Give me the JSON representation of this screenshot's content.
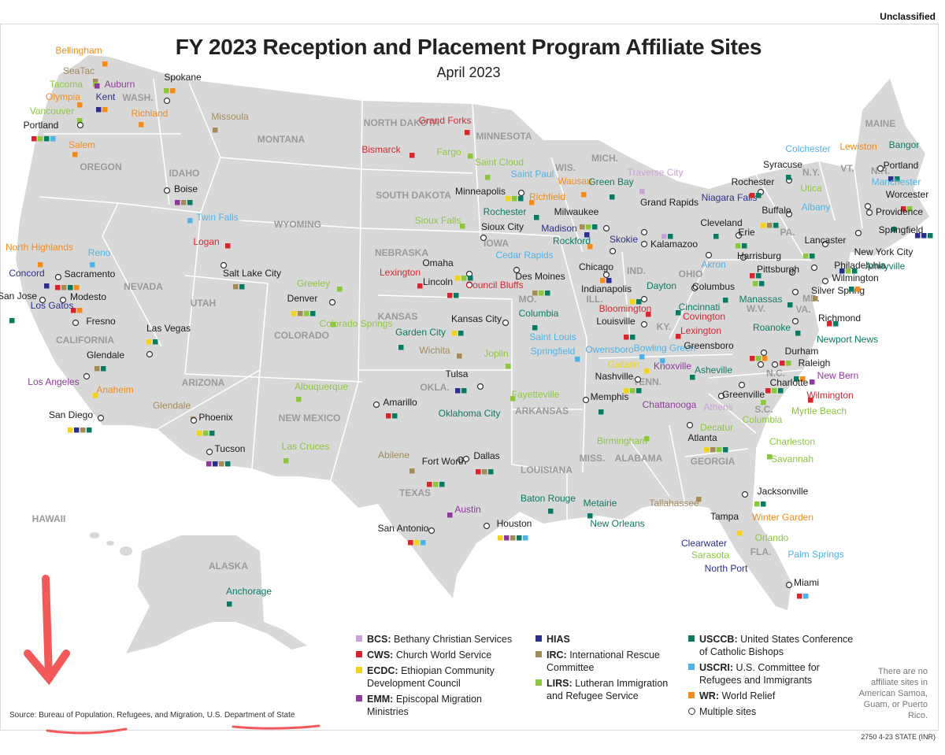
{
  "header": {
    "classification": "Unclassified",
    "title": "FY 2023 Reception and Placement Program Affiliate Sites",
    "subtitle": "April 2023"
  },
  "colors": {
    "BCS": "#c9a3d8",
    "CWS": "#d7262e",
    "ECDC": "#f2d21b",
    "EMM": "#8e3a9c",
    "HIAS": "#2b2e8c",
    "IRC": "#a38b5a",
    "LIRS": "#8cc63f",
    "USCCB": "#0b7a63",
    "USCRI": "#4fb3e6",
    "WR": "#f28c1d",
    "land": "#d8d8d8",
    "border": "#ffffff"
  },
  "legend": [
    {
      "code": "BCS",
      "abbr": "BCS:",
      "text": "Bethany Christian Services"
    },
    {
      "code": "CWS",
      "abbr": "CWS:",
      "text": "Church World Service"
    },
    {
      "code": "ECDC",
      "abbr": "ECDC:",
      "text": "Ethiopian Community Development Council"
    },
    {
      "code": "EMM",
      "abbr": "EMM:",
      "text": "Episcopal Migration Ministries"
    },
    {
      "code": "HIAS",
      "abbr": "HIAS",
      "text": ""
    },
    {
      "code": "IRC",
      "abbr": "IRC:",
      "text": "International Rescue Committee"
    },
    {
      "code": "LIRS",
      "abbr": "LIRS:",
      "text": "Lutheran Immigration and Refugee Service"
    },
    {
      "code": "USCCB",
      "abbr": "USCCB:",
      "text": "United States Conference of Catholic Bishops"
    },
    {
      "code": "USCRI",
      "abbr": "USCRI:",
      "text": "U.S. Committee for Refugees and Immigrants"
    },
    {
      "code": "WR",
      "abbr": "WR:",
      "text": "World Relief"
    },
    {
      "code": "MULTI",
      "abbr": "",
      "text": "Multiple sites"
    }
  ],
  "note": "There are no affiliate sites in American Samoa, Guam, or Puerto Rico.",
  "source": "Source: Bureau of Population, Refugees, and Migration, U.S. Department of State",
  "code_mark": "2750 4-23 STATE (INR)",
  "states": [
    "WASH.",
    "OREGON",
    "CALIFORNIA",
    "NEVADA",
    "IDAHO",
    "MONTANA",
    "WYOMING",
    "UTAH",
    "ARIZONA",
    "COLORADO",
    "NEW MEXICO",
    "NORTH DAKOTA",
    "SOUTH DAKOTA",
    "NEBRASKA",
    "KANSAS",
    "OKLA.",
    "TEXAS",
    "MINNESOTA",
    "IOWA",
    "MO.",
    "ARKANSAS",
    "LOUISIANA",
    "WIS.",
    "ILL.",
    "MICH.",
    "IND.",
    "OHIO",
    "KY.",
    "TENN.",
    "MISS.",
    "ALABAMA",
    "GEORGIA",
    "FLA.",
    "S.C.",
    "N.C.",
    "VA.",
    "W.V.",
    "PA.",
    "N.Y.",
    "VT.",
    "N.H.",
    "MAINE",
    "MD.",
    "HAWAII",
    "ALASKA"
  ],
  "cities": [
    {
      "name": "Bellingham",
      "color": "WR",
      "sites": [
        "WR"
      ]
    },
    {
      "name": "SeaTac",
      "color": "IRC",
      "sites": [
        "IRC"
      ]
    },
    {
      "name": "Tacoma",
      "color": "LIRS",
      "sites": [
        "LIRS"
      ]
    },
    {
      "name": "Auburn",
      "color": "EMM",
      "sites": [
        "EMM"
      ]
    },
    {
      "name": "Olympia",
      "color": "WR",
      "sites": [
        "WR"
      ]
    },
    {
      "name": "Kent",
      "color": "HIAS",
      "sites": [
        "HIAS",
        "WR"
      ]
    },
    {
      "name": "Spokane",
      "color": "black",
      "sites": [
        "LIRS",
        "WR"
      ]
    },
    {
      "name": "Vancouver",
      "color": "LIRS",
      "sites": [
        "LIRS"
      ]
    },
    {
      "name": "Richland",
      "color": "WR",
      "sites": [
        "WR"
      ]
    },
    {
      "name": "Portland",
      "color": "black",
      "sites": [
        "CWS",
        "LIRS",
        "USCCB",
        "USCRI"
      ]
    },
    {
      "name": "Salem",
      "color": "WR",
      "sites": [
        "WR"
      ]
    },
    {
      "name": "Missoula",
      "color": "IRC",
      "sites": [
        "IRC"
      ]
    },
    {
      "name": "Boise",
      "color": "black",
      "sites": [
        "EMM",
        "IRC",
        "USCCB"
      ]
    },
    {
      "name": "Twin Falls",
      "color": "USCRI",
      "sites": [
        "USCRI"
      ]
    },
    {
      "name": "Logan",
      "color": "CWS",
      "sites": [
        "CWS"
      ]
    },
    {
      "name": "Salt Lake City",
      "color": "black",
      "sites": [
        "IRC",
        "USCCB"
      ]
    },
    {
      "name": "Reno",
      "color": "USCRI",
      "sites": [
        "USCRI"
      ]
    },
    {
      "name": "North Highlands",
      "color": "WR",
      "sites": [
        "WR"
      ]
    },
    {
      "name": "Concord",
      "color": "HIAS",
      "sites": [
        "HIAS"
      ]
    },
    {
      "name": "Sacramento",
      "color": "black",
      "sites": [
        "CWS",
        "IRC",
        "USCCB",
        "WR"
      ]
    },
    {
      "name": "San Jose",
      "color": "black",
      "sites": [
        "USCCB"
      ]
    },
    {
      "name": "Modesto",
      "color": "black",
      "sites": [
        "CWS",
        "WR"
      ]
    },
    {
      "name": "Los Gatos",
      "color": "HIAS",
      "sites": [
        "HIAS"
      ]
    },
    {
      "name": "Fresno",
      "color": "black",
      "sites": []
    },
    {
      "name": "Las Vegas",
      "color": "black",
      "sites": [
        "ECDC",
        "USCCB"
      ]
    },
    {
      "name": "Glendale",
      "color": "black",
      "sites": [
        "IRC",
        "USCCB"
      ]
    },
    {
      "name": "Los Angeles",
      "color": "EMM",
      "sites": []
    },
    {
      "name": "Anaheim",
      "color": "WR",
      "sites": [
        "ECDC"
      ]
    },
    {
      "name": "San Diego",
      "color": "black",
      "sites": [
        "ECDC",
        "HIAS",
        "IRC",
        "USCCB"
      ]
    },
    {
      "name": "Glendale",
      "color": "IRC",
      "sites": [
        "IRC"
      ]
    },
    {
      "name": "Phoenix",
      "color": "black",
      "sites": [
        "ECDC",
        "LIRS",
        "USCCB"
      ]
    },
    {
      "name": "Tucson",
      "color": "black",
      "sites": [
        "EMM",
        "HIAS",
        "IRC",
        "USCCB"
      ]
    },
    {
      "name": "Greeley",
      "color": "LIRS",
      "sites": [
        "LIRS"
      ]
    },
    {
      "name": "Denver",
      "color": "black",
      "sites": [
        "ECDC",
        "IRC",
        "LIRS",
        "USCCB"
      ]
    },
    {
      "name": "Colorado Springs",
      "color": "LIRS",
      "sites": [
        "LIRS"
      ]
    },
    {
      "name": "Albuquerque",
      "color": "LIRS",
      "sites": [
        "LIRS"
      ]
    },
    {
      "name": "Las Cruces",
      "color": "LIRS",
      "sites": [
        "LIRS"
      ]
    },
    {
      "name": "Grand Forks",
      "color": "CWS",
      "sites": [
        "CWS"
      ]
    },
    {
      "name": "Bismarck",
      "color": "CWS",
      "sites": [
        "CWS"
      ]
    },
    {
      "name": "Fargo",
      "color": "LIRS",
      "sites": [
        "LIRS"
      ]
    },
    {
      "name": "Sioux Falls",
      "color": "LIRS",
      "sites": [
        "LIRS"
      ]
    },
    {
      "name": "Lexington",
      "color": "CWS",
      "sites": [
        "CWS"
      ]
    },
    {
      "name": "Omaha",
      "color": "black",
      "sites": [
        "ECDC",
        "LIRS",
        "USCCB"
      ]
    },
    {
      "name": "Lincoln",
      "color": "black",
      "sites": [
        "CWS",
        "USCCB"
      ]
    },
    {
      "name": "Council Bluffs",
      "color": "CWS",
      "sites": [
        "CWS"
      ]
    },
    {
      "name": "Garden City",
      "color": "USCCB",
      "sites": [
        "USCCB"
      ]
    },
    {
      "name": "Wichita",
      "color": "IRC",
      "sites": [
        "IRC"
      ]
    },
    {
      "name": "Kansas City",
      "color": "black",
      "sites": [
        "ECDC",
        "USCCB"
      ]
    },
    {
      "name": "Tulsa",
      "color": "black",
      "sites": [
        "HIAS",
        "USCCB"
      ]
    },
    {
      "name": "Oklahoma City",
      "color": "USCCB",
      "sites": [
        "USCCB"
      ]
    },
    {
      "name": "Amarillo",
      "color": "black",
      "sites": [
        "CWS",
        "USCCB"
      ]
    },
    {
      "name": "Abilene",
      "color": "IRC",
      "sites": [
        "IRC"
      ]
    },
    {
      "name": "Fort Worth",
      "color": "black",
      "sites": [
        "CWS",
        "LIRS",
        "USCCB"
      ]
    },
    {
      "name": "Dallas",
      "color": "black",
      "sites": [
        "CWS",
        "IRC",
        "USCCB"
      ]
    },
    {
      "name": "Austin",
      "color": "EMM",
      "sites": [
        "EMM"
      ]
    },
    {
      "name": "San Antonio",
      "color": "black",
      "sites": [
        "CWS",
        "ECDC",
        "USCRI"
      ]
    },
    {
      "name": "Houston",
      "color": "black",
      "sites": [
        "ECDC",
        "EMM",
        "IRC",
        "USCCB",
        "USCRI"
      ]
    },
    {
      "name": "Minneapolis",
      "color": "black",
      "sites": [
        "ECDC",
        "LIRS",
        "USCCB"
      ]
    },
    {
      "name": "Saint Cloud",
      "color": "LIRS",
      "sites": [
        "LIRS"
      ]
    },
    {
      "name": "Saint Paul",
      "color": "USCRI",
      "sites": []
    },
    {
      "name": "Richfield",
      "color": "WR",
      "sites": [
        "WR"
      ]
    },
    {
      "name": "Rochester",
      "color": "USCCB",
      "sites": [
        "USCCB"
      ]
    },
    {
      "name": "Sioux City",
      "color": "black",
      "sites": []
    },
    {
      "name": "Cedar Rapids",
      "color": "USCRI",
      "sites": []
    },
    {
      "name": "Des Moines",
      "color": "black",
      "sites": [
        "IRC",
        "LIRS",
        "USCCB"
      ]
    },
    {
      "name": "Columbia",
      "color": "USCCB",
      "sites": [
        "USCCB"
      ]
    },
    {
      "name": "Saint Louis",
      "color": "USCRI",
      "sites": []
    },
    {
      "name": "Springfield",
      "color": "USCRI",
      "sites": [
        "USCRI"
      ]
    },
    {
      "name": "Joplin",
      "color": "LIRS",
      "sites": [
        "LIRS"
      ]
    },
    {
      "name": "Fayetteville",
      "color": "LIRS",
      "sites": [
        "LIRS"
      ]
    },
    {
      "name": "Baton Rouge",
      "color": "USCCB",
      "sites": [
        "USCCB"
      ]
    },
    {
      "name": "Metairie",
      "color": "USCCB",
      "sites": [
        "USCCB"
      ]
    },
    {
      "name": "New Orleans",
      "color": "USCCB",
      "sites": []
    },
    {
      "name": "Wausau",
      "color": "WR",
      "sites": [
        "WR"
      ]
    },
    {
      "name": "Green Bay",
      "color": "USCCB",
      "sites": [
        "USCCB"
      ]
    },
    {
      "name": "Milwaukee",
      "color": "black",
      "sites": [
        "IRC",
        "LIRS",
        "USCCB"
      ]
    },
    {
      "name": "Madison",
      "color": "HIAS",
      "sites": [
        "HIAS"
      ]
    },
    {
      "name": "Rockford",
      "color": "USCCB",
      "sites": [
        "WR"
      ]
    },
    {
      "name": "Chicago",
      "color": "black",
      "sites": [
        "WR",
        "HIAS"
      ]
    },
    {
      "name": "Skokie",
      "color": "HIAS",
      "sites": []
    },
    {
      "name": "Traverse City",
      "color": "BCS",
      "sites": [
        "BCS"
      ]
    },
    {
      "name": "Grand Rapids",
      "color": "black",
      "sites": [
        "BCS",
        "USCCB"
      ]
    },
    {
      "name": "Kalamazoo",
      "color": "black",
      "sites": []
    },
    {
      "name": "Indianapolis",
      "color": "black",
      "sites": [
        "ECDC",
        "USCCB"
      ]
    },
    {
      "name": "Bloomington",
      "color": "CWS",
      "sites": [
        "CWS"
      ]
    },
    {
      "name": "Louisville",
      "color": "black",
      "sites": [
        "CWS",
        "USCCB"
      ]
    },
    {
      "name": "Owensboro",
      "color": "USCRI",
      "sites": [
        "USCRI"
      ]
    },
    {
      "name": "Bowling Green",
      "color": "USCRI",
      "sites": [
        "USCRI"
      ]
    },
    {
      "name": "Lexington",
      "color": "CWS",
      "sites": [
        "CWS"
      ]
    },
    {
      "name": "Covington",
      "color": "CWS",
      "sites": []
    },
    {
      "name": "Cincinnati",
      "color": "USCCB",
      "sites": [
        "USCCB"
      ]
    },
    {
      "name": "Dayton",
      "color": "USCCB",
      "sites": []
    },
    {
      "name": "Columbus",
      "color": "black",
      "sites": [
        "USCCB"
      ]
    },
    {
      "name": "Akron",
      "color": "USCRI",
      "sites": []
    },
    {
      "name": "Cleveland",
      "color": "black",
      "sites": [
        "USCCB"
      ]
    },
    {
      "name": "Gallatin",
      "color": "ECDC",
      "sites": [
        "ECDC"
      ]
    },
    {
      "name": "Knoxville",
      "color": "EMM",
      "sites": []
    },
    {
      "name": "Nashville",
      "color": "black",
      "sites": [
        "ECDC",
        "LIRS",
        "USCCB"
      ]
    },
    {
      "name": "Memphis",
      "color": "black",
      "sites": [
        "USCCB"
      ]
    },
    {
      "name": "Chattanooga",
      "color": "EMM",
      "sites": [
        "EMM"
      ]
    },
    {
      "name": "Birmingham",
      "color": "LIRS",
      "sites": [
        "LIRS"
      ]
    },
    {
      "name": "Athens",
      "color": "BCS",
      "sites": []
    },
    {
      "name": "Decatur",
      "color": "LIRS",
      "sites": []
    },
    {
      "name": "Atlanta",
      "color": "black",
      "sites": [
        "ECDC",
        "IRC",
        "LIRS",
        "USCCB"
      ]
    },
    {
      "name": "Savannah",
      "color": "LIRS",
      "sites": [
        "LIRS"
      ]
    },
    {
      "name": "Tallahassee",
      "color": "IRC",
      "sites": [
        "IRC"
      ]
    },
    {
      "name": "Jacksonville",
      "color": "black",
      "sites": [
        "LIRS",
        "USCCB"
      ]
    },
    {
      "name": "Tampa",
      "color": "black",
      "sites": [
        "ECDC"
      ]
    },
    {
      "name": "Winter Garden",
      "color": "WR",
      "sites": []
    },
    {
      "name": "Orlando",
      "color": "LIRS",
      "sites": []
    },
    {
      "name": "Clearwater",
      "color": "HIAS",
      "sites": []
    },
    {
      "name": "Sarasota",
      "color": "LIRS",
      "sites": []
    },
    {
      "name": "North Port",
      "color": "HIAS",
      "sites": []
    },
    {
      "name": "Palm Springs",
      "color": "USCRI",
      "sites": []
    },
    {
      "name": "Miami",
      "color": "black",
      "sites": [
        "CWS",
        "USCRI"
      ]
    },
    {
      "name": "Asheville",
      "color": "USCCB",
      "sites": [
        "USCCB"
      ]
    },
    {
      "name": "Greensboro",
      "color": "black",
      "sites": [
        "CWS",
        "LIRS",
        "WR"
      ]
    },
    {
      "name": "Durham",
      "color": "black",
      "sites": [
        "CWS",
        "LIRS"
      ]
    },
    {
      "name": "Raleigh",
      "color": "black",
      "sites": [
        "USCCB",
        "WR"
      ]
    },
    {
      "name": "New Bern",
      "color": "EMM",
      "sites": [
        "EMM"
      ]
    },
    {
      "name": "Charlotte",
      "color": "black",
      "sites": [
        "CWS",
        "LIRS",
        "USCCB"
      ]
    },
    {
      "name": "Wilmington",
      "color": "CWS",
      "sites": [
        "CWS"
      ]
    },
    {
      "name": "Greenville",
      "color": "black",
      "sites": [
        "LIRS"
      ]
    },
    {
      "name": "Columbia",
      "color": "LIRS",
      "sites": []
    },
    {
      "name": "Myrtle Beach",
      "color": "LIRS",
      "sites": []
    },
    {
      "name": "Charleston",
      "color": "LIRS",
      "sites": []
    },
    {
      "name": "Roanoke",
      "color": "USCCB",
      "sites": [
        "USCCB"
      ]
    },
    {
      "name": "Richmond",
      "color": "black",
      "sites": [
        "CWS",
        "USCCB"
      ]
    },
    {
      "name": "Newport News",
      "color": "USCCB",
      "sites": []
    },
    {
      "name": "Manassas",
      "color": "USCCB",
      "sites": [
        "USCCB"
      ]
    },
    {
      "name": "Silver Spring",
      "color": "black",
      "sites": [
        "IRC"
      ]
    },
    {
      "name": "Harrisburg",
      "color": "black",
      "sites": [
        "CWS",
        "USCCB"
      ]
    },
    {
      "name": "Pittsburgh",
      "color": "black",
      "sites": [
        "LIRS",
        "USCCB"
      ]
    },
    {
      "name": "Lancaster",
      "color": "black",
      "sites": [
        "LIRS",
        "USCCB"
      ]
    },
    {
      "name": "Erie",
      "color": "black",
      "sites": [
        "LIRS",
        "USCCB"
      ]
    },
    {
      "name": "Philadelphia",
      "color": "black",
      "sites": [
        "HIAS",
        "LIRS",
        "USCCB"
      ]
    },
    {
      "name": "Wilmington",
      "color": "black",
      "sites": [
        "USCCB",
        "WR"
      ]
    },
    {
      "name": "Niagara Falls",
      "color": "HIAS",
      "sites": []
    },
    {
      "name": "Buffalo",
      "color": "black",
      "sites": [
        "ECDC",
        "IRC",
        "USCCB"
      ]
    },
    {
      "name": "Rochester",
      "color": "black",
      "sites": [
        "CWS",
        "USCCB"
      ]
    },
    {
      "name": "Syracuse",
      "color": "black",
      "sites": [
        "USCCB"
      ]
    },
    {
      "name": "Utica",
      "color": "LIRS",
      "sites": []
    },
    {
      "name": "Albany",
      "color": "USCRI",
      "sites": []
    },
    {
      "name": "New York City",
      "color": "black",
      "sites": [
        "CWS",
        "HIAS",
        "IRC",
        "USCCB",
        "USCRI"
      ]
    },
    {
      "name": "Amityville",
      "color": "USCCB",
      "sites": []
    },
    {
      "name": "Colchester",
      "color": "USCRI",
      "sites": []
    },
    {
      "name": "Lewiston",
      "color": "WR",
      "sites": []
    },
    {
      "name": "Bangor",
      "color": "USCCB",
      "sites": []
    },
    {
      "name": "Portland",
      "color": "black",
      "sites": [
        "HIAS",
        "USCCB"
      ]
    },
    {
      "name": "Manchester",
      "color": "USCRI",
      "sites": []
    },
    {
      "name": "Worcester",
      "color": "black",
      "sites": [
        "CWS",
        "LIRS"
      ]
    },
    {
      "name": "Providence",
      "color": "black",
      "sites": [
        "USCCB"
      ]
    },
    {
      "name": "Springfield",
      "color": "black",
      "sites": [
        "HIAS",
        "HIAS",
        "USCCB"
      ]
    },
    {
      "name": "Anchorage",
      "color": "USCCB",
      "sites": [
        "USCCB"
      ]
    }
  ]
}
